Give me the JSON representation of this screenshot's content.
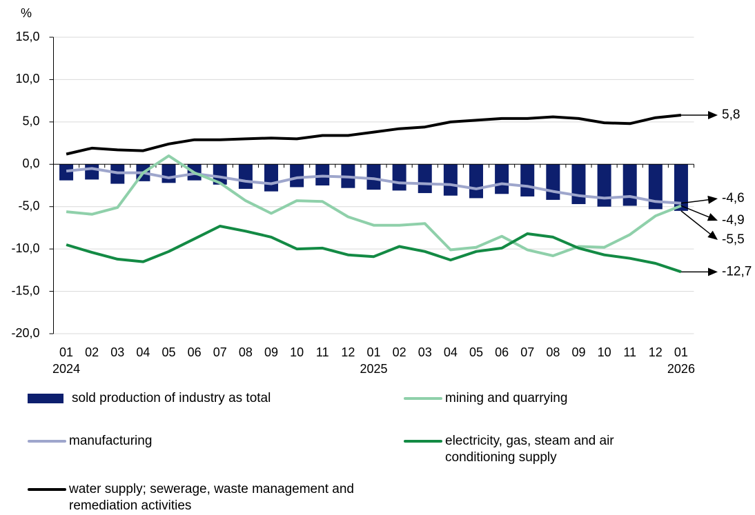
{
  "chart_data": {
    "type": "bar_line",
    "y_unit": "%",
    "categories": [
      "01",
      "02",
      "03",
      "04",
      "05",
      "06",
      "07",
      "08",
      "09",
      "10",
      "11",
      "12",
      "01",
      "02",
      "03",
      "04",
      "05",
      "06",
      "07",
      "08",
      "09",
      "10",
      "11",
      "12",
      "01"
    ],
    "years": [
      "2024",
      null,
      null,
      null,
      null,
      null,
      null,
      null,
      null,
      null,
      null,
      null,
      "2025",
      null,
      null,
      null,
      null,
      null,
      null,
      null,
      null,
      null,
      null,
      null,
      "2026"
    ],
    "ylim": [
      -20,
      15
    ],
    "yticks": [
      {
        "value": -20,
        "label": "-20,0"
      },
      {
        "value": -15,
        "label": "-15,0"
      },
      {
        "value": -10,
        "label": "-10,0"
      },
      {
        "value": -5,
        "label": "-5,0"
      },
      {
        "value": 0,
        "label": "0,0"
      },
      {
        "value": 5,
        "label": "5,0"
      },
      {
        "value": 10,
        "label": "10,0"
      },
      {
        "value": 15,
        "label": "15,0"
      }
    ],
    "grid": true,
    "series": [
      {
        "name": "sold production of industry as total",
        "kind": "bar",
        "color": "#0d1f6e",
        "values": [
          -1.9,
          -1.8,
          -2.3,
          -2.0,
          -2.2,
          -1.9,
          -2.4,
          -2.9,
          -3.2,
          -2.7,
          -2.5,
          -2.8,
          -3.0,
          -3.1,
          -3.4,
          -3.7,
          -4.0,
          -3.5,
          -3.8,
          -4.2,
          -4.7,
          -5.0,
          -4.9,
          -5.3,
          -5.5
        ],
        "end_label": "-5,5"
      },
      {
        "name": "mining and quarrying",
        "kind": "line",
        "color": "#8fd0aa",
        "values": [
          -5.6,
          -5.9,
          -5.1,
          -1.0,
          1.0,
          -1.0,
          -2.2,
          -4.3,
          -5.8,
          -4.3,
          -4.4,
          -6.2,
          -7.2,
          -7.2,
          -7.0,
          -10.1,
          -9.8,
          -8.5,
          -10.1,
          -10.8,
          -9.7,
          -9.8,
          -8.3,
          -6.1,
          -4.9
        ],
        "end_label": "-4,9"
      },
      {
        "name": "manufacturing",
        "kind": "line",
        "color": "#9ea6cc",
        "values": [
          -0.8,
          -0.5,
          -1.0,
          -1.0,
          -1.6,
          -1.1,
          -1.5,
          -2.0,
          -2.3,
          -1.6,
          -1.4,
          -1.5,
          -1.7,
          -2.2,
          -2.3,
          -2.4,
          -2.9,
          -2.3,
          -2.6,
          -3.2,
          -3.7,
          -4.0,
          -3.8,
          -4.4,
          -4.6
        ],
        "end_label": "-4,6"
      },
      {
        "name": "electricity, gas, steam and air conditioning supply",
        "kind": "line",
        "color": "#138a44",
        "values": [
          -9.5,
          -10.4,
          -11.2,
          -11.5,
          -10.3,
          -8.8,
          -7.3,
          -7.9,
          -8.6,
          -10.0,
          -9.9,
          -10.7,
          -10.9,
          -9.7,
          -10.3,
          -11.3,
          -10.3,
          -9.9,
          -8.2,
          -8.6,
          -9.9,
          -10.7,
          -11.1,
          -11.7,
          -12.7
        ],
        "end_label": "-12,7"
      },
      {
        "name": "water supply; sewerage, waste management and remediation activities",
        "kind": "line",
        "color": "#000000",
        "values": [
          1.2,
          1.9,
          1.7,
          1.6,
          2.4,
          2.9,
          2.9,
          3.0,
          3.1,
          3.0,
          3.4,
          3.4,
          3.8,
          4.2,
          4.4,
          5.0,
          5.2,
          5.4,
          5.4,
          5.6,
          5.4,
          4.9,
          4.8,
          5.5,
          5.8
        ],
        "end_label": "5,8"
      }
    ]
  }
}
